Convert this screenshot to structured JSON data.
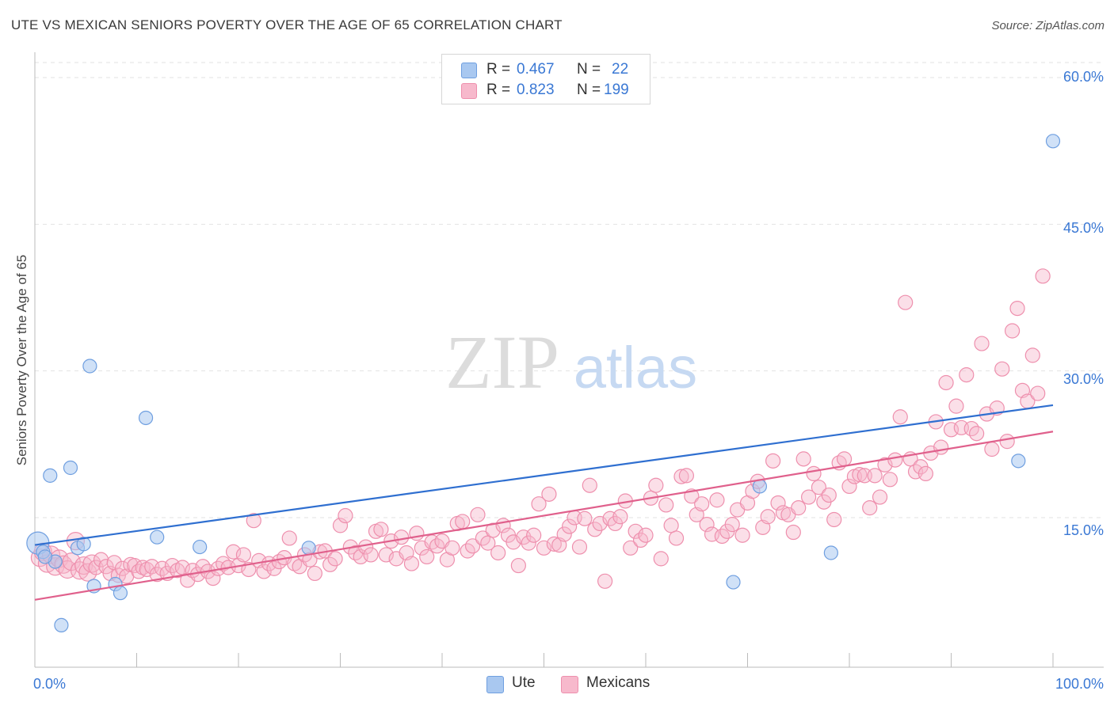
{
  "title": "UTE VS MEXICAN SENIORS POVERTY OVER THE AGE OF 65 CORRELATION CHART",
  "source": "Source: ZipAtlas.com",
  "watermark": {
    "part1": "ZIP",
    "part2": "atlas"
  },
  "legend": {
    "rows": [
      {
        "r_label": "R =",
        "r_value": "0.467",
        "n_label": "N =",
        "n_value": "22"
      },
      {
        "r_label": "R =",
        "r_value": "0.823",
        "n_label": "N =",
        "n_value": "199"
      }
    ]
  },
  "bottom_legend": {
    "ute": "Ute",
    "mexicans": "Mexicans"
  },
  "colors": {
    "ute_fill": "#a9c8f0",
    "ute_stroke": "#6f9fe0",
    "ute_line": "#2f6fd0",
    "mex_fill": "#f7b9cc",
    "mex_stroke": "#ee8fad",
    "mex_line": "#e0608c",
    "accent_text": "#3a78d4"
  },
  "chart_data": {
    "type": "scatter",
    "title": "UTE VS MEXICAN SENIORS POVERTY OVER THE AGE OF 65 CORRELATION CHART",
    "xlabel": "",
    "ylabel": "Seniors Poverty Over the Age of 65",
    "xlim": [
      0,
      100
    ],
    "ylim": [
      0,
      65
    ],
    "x_tick_labels": [
      "0.0%",
      "100.0%"
    ],
    "y_tick_labels": [
      "15.0%",
      "30.0%",
      "45.0%",
      "60.0%"
    ],
    "y_ticks": [
      15,
      30,
      45,
      60
    ],
    "grid": "dashed horizontal",
    "legend_position": "top-center",
    "series": [
      {
        "name": "Ute",
        "R": 0.467,
        "N": 22,
        "trend": {
          "x": [
            0,
            100
          ],
          "y": [
            12.2,
            26.5
          ]
        },
        "points": [
          [
            0.3,
            12.4
          ],
          [
            0.8,
            11.5
          ],
          [
            1.5,
            19.3
          ],
          [
            2.0,
            10.5
          ],
          [
            2.6,
            4.0
          ],
          [
            3.5,
            20.1
          ],
          [
            4.2,
            11.9
          ],
          [
            4.8,
            12.3
          ],
          [
            5.4,
            30.5
          ],
          [
            5.8,
            8.0
          ],
          [
            7.9,
            8.2
          ],
          [
            8.4,
            7.3
          ],
          [
            10.9,
            25.2
          ],
          [
            12.0,
            13.0
          ],
          [
            16.2,
            12.0
          ],
          [
            26.9,
            11.9
          ],
          [
            68.6,
            8.4
          ],
          [
            71.2,
            18.2
          ],
          [
            78.2,
            11.4
          ],
          [
            96.6,
            20.8
          ],
          [
            100.0,
            53.5
          ],
          [
            1.0,
            11.0
          ]
        ]
      },
      {
        "name": "Mexicans",
        "R": 0.823,
        "N": 199,
        "trend": {
          "x": [
            0,
            100
          ],
          "y": [
            6.6,
            23.8
          ]
        },
        "points": [
          [
            0.5,
            10.9
          ],
          [
            0.8,
            11.5
          ],
          [
            1.2,
            10.3
          ],
          [
            1.6,
            11.2
          ],
          [
            2.0,
            10.0
          ],
          [
            2.4,
            10.8
          ],
          [
            2.8,
            10.2
          ],
          [
            3.2,
            9.7
          ],
          [
            3.6,
            10.5
          ],
          [
            4.0,
            12.6
          ],
          [
            4.4,
            9.6
          ],
          [
            4.8,
            10.1
          ],
          [
            5.2,
            9.4
          ],
          [
            5.6,
            10.3
          ],
          [
            6.0,
            9.9
          ],
          [
            6.5,
            10.7
          ],
          [
            7.0,
            10.0
          ],
          [
            7.4,
            9.3
          ],
          [
            7.8,
            10.4
          ],
          [
            8.2,
            9.1
          ],
          [
            8.6,
            9.8
          ],
          [
            9.0,
            9.0
          ],
          [
            9.4,
            10.2
          ],
          [
            9.8,
            10.1
          ],
          [
            10.2,
            9.5
          ],
          [
            10.6,
            9.9
          ],
          [
            11.0,
            9.7
          ],
          [
            11.5,
            10.0
          ],
          [
            12.0,
            9.2
          ],
          [
            12.5,
            9.8
          ],
          [
            13.0,
            9.3
          ],
          [
            13.5,
            10.1
          ],
          [
            14.0,
            9.6
          ],
          [
            14.5,
            9.9
          ],
          [
            15.0,
            8.6
          ],
          [
            15.5,
            9.6
          ],
          [
            16.0,
            9.2
          ],
          [
            16.5,
            10.0
          ],
          [
            17.0,
            9.5
          ],
          [
            17.5,
            8.8
          ],
          [
            18.0,
            9.8
          ],
          [
            18.5,
            10.3
          ],
          [
            19.0,
            9.9
          ],
          [
            19.5,
            11.5
          ],
          [
            20.0,
            10.1
          ],
          [
            20.5,
            11.2
          ],
          [
            21.0,
            9.7
          ],
          [
            21.5,
            14.7
          ],
          [
            22.0,
            10.6
          ],
          [
            22.5,
            9.5
          ],
          [
            23.0,
            10.3
          ],
          [
            23.5,
            9.8
          ],
          [
            24.0,
            10.5
          ],
          [
            24.5,
            10.9
          ],
          [
            25.0,
            12.9
          ],
          [
            25.5,
            10.3
          ],
          [
            26.0,
            10.0
          ],
          [
            26.5,
            11.2
          ],
          [
            27.0,
            10.7
          ],
          [
            27.5,
            9.3
          ],
          [
            28.0,
            11.5
          ],
          [
            28.5,
            11.6
          ],
          [
            29.0,
            10.2
          ],
          [
            29.5,
            10.8
          ],
          [
            30.0,
            14.2
          ],
          [
            30.5,
            15.2
          ],
          [
            31.0,
            12.0
          ],
          [
            31.5,
            11.4
          ],
          [
            32.0,
            11.0
          ],
          [
            32.5,
            12.0
          ],
          [
            33.0,
            11.2
          ],
          [
            33.5,
            13.6
          ],
          [
            34.0,
            13.8
          ],
          [
            34.5,
            11.2
          ],
          [
            35.0,
            12.6
          ],
          [
            35.5,
            10.8
          ],
          [
            36.0,
            13.0
          ],
          [
            36.5,
            11.4
          ],
          [
            37.0,
            10.3
          ],
          [
            37.5,
            13.4
          ],
          [
            38.0,
            11.9
          ],
          [
            38.5,
            11.0
          ],
          [
            39.0,
            12.5
          ],
          [
            39.5,
            12.1
          ],
          [
            40.0,
            12.6
          ],
          [
            40.5,
            10.7
          ],
          [
            41.0,
            11.9
          ],
          [
            41.5,
            14.4
          ],
          [
            42.0,
            14.6
          ],
          [
            42.5,
            11.6
          ],
          [
            43.0,
            12.1
          ],
          [
            43.5,
            15.3
          ],
          [
            44.0,
            12.9
          ],
          [
            44.5,
            12.4
          ],
          [
            45.0,
            13.7
          ],
          [
            45.5,
            11.4
          ],
          [
            46.0,
            14.2
          ],
          [
            46.5,
            13.2
          ],
          [
            47.0,
            12.5
          ],
          [
            47.5,
            10.1
          ],
          [
            48.0,
            13.0
          ],
          [
            48.5,
            12.4
          ],
          [
            49.0,
            13.2
          ],
          [
            49.5,
            16.4
          ],
          [
            50.0,
            11.9
          ],
          [
            50.5,
            17.4
          ],
          [
            51.0,
            12.3
          ],
          [
            51.5,
            12.2
          ],
          [
            52.0,
            13.3
          ],
          [
            52.5,
            14.1
          ],
          [
            53.0,
            15.0
          ],
          [
            53.5,
            12.0
          ],
          [
            54.0,
            14.9
          ],
          [
            54.5,
            18.3
          ],
          [
            55.0,
            13.8
          ],
          [
            55.5,
            14.4
          ],
          [
            56.0,
            8.5
          ],
          [
            56.5,
            14.9
          ],
          [
            57.0,
            14.4
          ],
          [
            57.5,
            15.1
          ],
          [
            58.0,
            16.7
          ],
          [
            58.5,
            11.9
          ],
          [
            59.0,
            13.6
          ],
          [
            59.5,
            12.7
          ],
          [
            60.0,
            13.2
          ],
          [
            60.5,
            17.0
          ],
          [
            61.0,
            18.3
          ],
          [
            61.5,
            10.8
          ],
          [
            62.0,
            16.3
          ],
          [
            62.5,
            14.2
          ],
          [
            63.0,
            12.9
          ],
          [
            63.5,
            19.2
          ],
          [
            64.0,
            19.3
          ],
          [
            64.5,
            17.2
          ],
          [
            65.0,
            15.3
          ],
          [
            65.5,
            16.4
          ],
          [
            66.0,
            14.3
          ],
          [
            66.5,
            13.3
          ],
          [
            67.0,
            16.8
          ],
          [
            67.5,
            13.1
          ],
          [
            68.0,
            13.6
          ],
          [
            68.5,
            14.3
          ],
          [
            69.0,
            15.8
          ],
          [
            69.5,
            13.2
          ],
          [
            70.0,
            16.5
          ],
          [
            70.5,
            17.7
          ],
          [
            71.0,
            18.7
          ],
          [
            71.5,
            14.0
          ],
          [
            72.0,
            15.1
          ],
          [
            72.5,
            20.8
          ],
          [
            73.0,
            16.5
          ],
          [
            73.5,
            15.5
          ],
          [
            74.0,
            15.3
          ],
          [
            74.5,
            13.5
          ],
          [
            75.0,
            16.0
          ],
          [
            75.5,
            21.0
          ],
          [
            76.0,
            17.1
          ],
          [
            76.5,
            19.5
          ],
          [
            77.0,
            18.1
          ],
          [
            77.5,
            16.6
          ],
          [
            78.0,
            17.3
          ],
          [
            78.5,
            14.8
          ],
          [
            79.0,
            20.6
          ],
          [
            79.5,
            21.0
          ],
          [
            80.0,
            18.2
          ],
          [
            80.5,
            19.2
          ],
          [
            81.0,
            19.4
          ],
          [
            81.5,
            19.3
          ],
          [
            82.0,
            16.0
          ],
          [
            82.5,
            19.3
          ],
          [
            83.0,
            17.1
          ],
          [
            83.5,
            20.4
          ],
          [
            84.0,
            18.9
          ],
          [
            84.5,
            20.9
          ],
          [
            85.0,
            25.3
          ],
          [
            85.5,
            37.0
          ],
          [
            86.0,
            21.0
          ],
          [
            86.5,
            19.7
          ],
          [
            87.0,
            20.2
          ],
          [
            87.5,
            19.5
          ],
          [
            88.0,
            21.6
          ],
          [
            88.5,
            24.8
          ],
          [
            89.0,
            22.2
          ],
          [
            89.5,
            28.8
          ],
          [
            90.0,
            24.0
          ],
          [
            90.5,
            26.4
          ],
          [
            91.0,
            24.2
          ],
          [
            91.5,
            29.6
          ],
          [
            92.0,
            24.1
          ],
          [
            92.5,
            23.6
          ],
          [
            93.0,
            32.8
          ],
          [
            93.5,
            25.6
          ],
          [
            94.0,
            22.0
          ],
          [
            94.5,
            26.2
          ],
          [
            95.0,
            30.2
          ],
          [
            95.5,
            22.8
          ],
          [
            96.0,
            34.1
          ],
          [
            96.5,
            36.4
          ],
          [
            97.0,
            28.0
          ],
          [
            97.5,
            26.9
          ],
          [
            98.0,
            31.6
          ],
          [
            98.5,
            27.7
          ],
          [
            99.0,
            39.7
          ]
        ]
      }
    ]
  }
}
